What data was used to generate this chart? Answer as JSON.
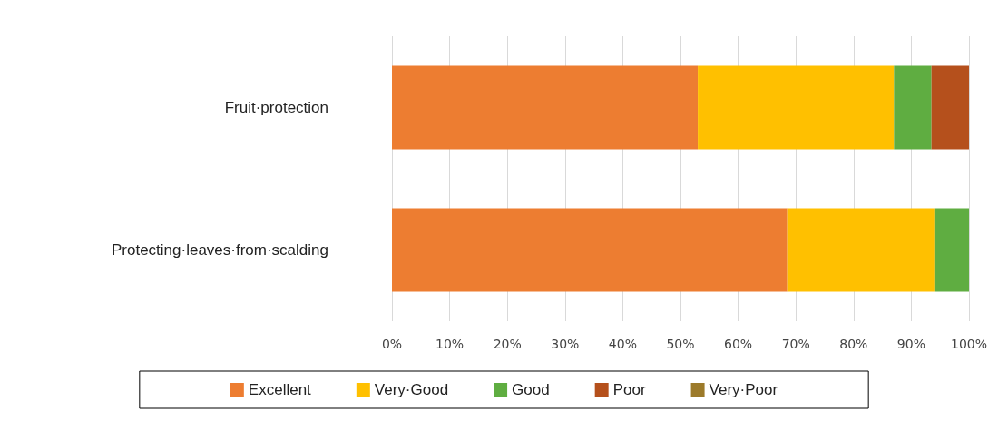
{
  "chart_data": {
    "type": "bar",
    "orientation": "horizontal",
    "stacked": true,
    "categories": [
      "Fruit·protection",
      "Protecting·leaves·from·scalding"
    ],
    "series": [
      {
        "name": "Excellent",
        "color": "#ed7d31",
        "values": [
          53,
          68.5
        ]
      },
      {
        "name": "Very·Good",
        "color": "#ffc000",
        "values": [
          34,
          25.5
        ]
      },
      {
        "name": "Good",
        "color": "#5fad41",
        "values": [
          6.5,
          6
        ]
      },
      {
        "name": "Poor",
        "color": "#b5501c",
        "values": [
          6.5,
          0
        ]
      },
      {
        "name": "Very·Poor",
        "color": "#9c7a2a",
        "values": [
          0,
          0
        ]
      }
    ],
    "xlim": [
      0,
      100
    ],
    "xticks": [
      {
        "value": 0,
        "label": "0%"
      },
      {
        "value": 10,
        "label": "10%"
      },
      {
        "value": 20,
        "label": "20%"
      },
      {
        "value": 30,
        "label": "30%"
      },
      {
        "value": 40,
        "label": "40%"
      },
      {
        "value": 50,
        "label": "50%"
      },
      {
        "value": 60,
        "label": "60%"
      },
      {
        "value": 70,
        "label": "70%"
      },
      {
        "value": 80,
        "label": "80%"
      },
      {
        "value": 90,
        "label": "90%"
      },
      {
        "value": 100,
        "label": "100%"
      }
    ],
    "grid": "x",
    "legend": "bottom"
  }
}
